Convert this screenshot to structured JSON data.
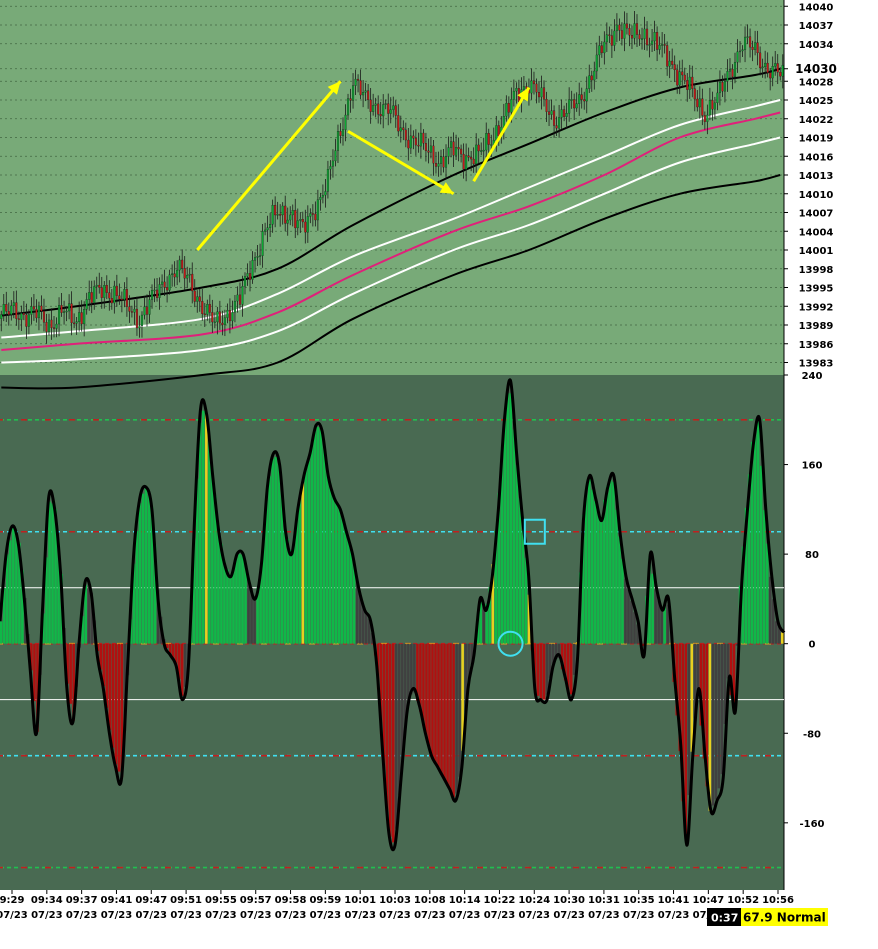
{
  "chart_data": [
    {
      "type": "candlestick",
      "panel": "price",
      "y_ticks": [
        "14040",
        "14037",
        "14034",
        "14030",
        "14028",
        "14025",
        "14022",
        "14019",
        "14016",
        "14013",
        "14010",
        "14007",
        "14004",
        "14001",
        "13998",
        "13995",
        "13992",
        "13989",
        "13986",
        "13983"
      ],
      "highlight_tick": "14030",
      "ylim": [
        13981,
        14041
      ],
      "grid": "dotted horizontal",
      "colors": {
        "background": "#78aa78",
        "up_candle": "#0aa832",
        "down_candle": "#c01818",
        "wick": "#1a1a1a",
        "ema_black": "#000000",
        "band_white": "#ffffff",
        "ema_magenta": "#e0207a",
        "arrows": "#ffff00"
      },
      "price_anchors": [
        [
          0,
          13990
        ],
        [
          5,
          13992
        ],
        [
          10,
          13990
        ],
        [
          15,
          13991
        ],
        [
          20,
          13989
        ],
        [
          25,
          13991
        ],
        [
          30,
          13990
        ],
        [
          35,
          13993
        ],
        [
          40,
          13995
        ],
        [
          45,
          13994
        ],
        [
          50,
          13992
        ],
        [
          55,
          13990
        ],
        [
          60,
          13993
        ],
        [
          65,
          13996
        ],
        [
          70,
          13998
        ],
        [
          75,
          13996
        ],
        [
          80,
          13992
        ],
        [
          85,
          13989
        ],
        [
          90,
          13991
        ],
        [
          95,
          13993
        ],
        [
          100,
          13999
        ],
        [
          105,
          14004
        ],
        [
          110,
          14007
        ],
        [
          115,
          14007
        ],
        [
          120,
          14004
        ],
        [
          125,
          14008
        ],
        [
          130,
          14012
        ],
        [
          135,
          14020
        ],
        [
          140,
          14028
        ],
        [
          145,
          14025
        ],
        [
          150,
          14024
        ],
        [
          155,
          14023
        ],
        [
          160,
          14020
        ],
        [
          165,
          14018
        ],
        [
          170,
          14017
        ],
        [
          175,
          14015
        ],
        [
          180,
          14017
        ],
        [
          185,
          14016
        ],
        [
          190,
          14016
        ],
        [
          195,
          14019
        ],
        [
          200,
          14022
        ],
        [
          205,
          14026
        ],
        [
          210,
          14028
        ],
        [
          215,
          14025
        ],
        [
          220,
          14022
        ],
        [
          225,
          14023
        ],
        [
          230,
          14025
        ],
        [
          235,
          14029
        ],
        [
          240,
          14034
        ],
        [
          245,
          14037
        ],
        [
          250,
          14035
        ],
        [
          255,
          14036
        ],
        [
          260,
          14034
        ],
        [
          265,
          14032
        ],
        [
          270,
          14029
        ],
        [
          275,
          14026
        ],
        [
          280,
          14023
        ],
        [
          285,
          14025
        ],
        [
          290,
          14030
        ],
        [
          295,
          14034
        ],
        [
          300,
          14033
        ],
        [
          305,
          14030
        ],
        [
          310,
          14029
        ]
      ],
      "moving_averages": [
        {
          "color": "#000000",
          "values": [
            13990.5,
            13992,
            13995,
            13998,
            14005,
            14013,
            14018,
            14023,
            14027,
            14029,
            14030
          ]
        },
        {
          "color": "#ffffff",
          "values": [
            13987,
            13988,
            13990,
            13994,
            14000,
            14006,
            14011,
            14016,
            14021,
            14024,
            14025
          ]
        },
        {
          "color": "#e0207a",
          "values": [
            13985,
            13986,
            13987.5,
            13991,
            13997,
            14004,
            14008,
            14013,
            14019,
            14022,
            14023
          ]
        },
        {
          "color": "#ffffff",
          "values": [
            13983,
            13983.5,
            13985,
            13988,
            13994,
            14001,
            14005,
            14010,
            14015,
            14018,
            14019
          ]
        },
        {
          "color": "#000000",
          "values": [
            13979,
            13979,
            13981,
            13983,
            13990,
            13997,
            14001,
            14006,
            14010,
            14012,
            14013
          ]
        }
      ],
      "ma_positions": [
        0,
        30,
        80,
        110,
        140,
        180,
        210,
        240,
        270,
        300,
        310
      ],
      "arrows": [
        {
          "from": [
            78,
            14001
          ],
          "to": [
            135,
            14028
          ]
        },
        {
          "from": [
            138,
            14020
          ],
          "to": [
            180,
            14010
          ]
        },
        {
          "from": [
            188,
            14012
          ],
          "to": [
            210,
            14027
          ]
        }
      ]
    },
    {
      "type": "area",
      "panel": "oscillator",
      "y_ticks": [
        "240",
        "160",
        "80",
        "0",
        "-80",
        "-160"
      ],
      "ylim": [
        -220,
        240
      ],
      "reference_lines": [
        {
          "value": 200,
          "style": "dashed",
          "color": "#20c050"
        },
        {
          "value": 100,
          "style": "dashed",
          "color": "#40e0f0"
        },
        {
          "value": 50,
          "style": "solid",
          "color": "#ffffff"
        },
        {
          "value": 0,
          "style": "dashed",
          "color": "#c02020"
        },
        {
          "value": -50,
          "style": "solid",
          "color": "#ffffff"
        },
        {
          "value": -100,
          "style": "dashed",
          "color": "#40e0f0"
        },
        {
          "value": -200,
          "style": "dashed",
          "color": "#20c050"
        }
      ],
      "colors": {
        "background": "#496a52",
        "positive": "#10b848",
        "negative": "#b01010",
        "neutral": "#404040",
        "yellow_bar": "#e8d020",
        "line": "#000000",
        "markers": "#40e0f0"
      },
      "series": [
        {
          "values": [
            20,
            80,
            105,
            90,
            40,
            -25,
            -80,
            30,
            130,
            120,
            60,
            -40,
            -70,
            0,
            55,
            45,
            -10,
            -40,
            -80,
            -110,
            -120,
            -20,
            80,
            130,
            140,
            120,
            40,
            0,
            -10,
            -20,
            -50,
            -20,
            110,
            210,
            205,
            150,
            100,
            70,
            60,
            80,
            80,
            55,
            40,
            70,
            140,
            170,
            160,
            100,
            80,
            120,
            150,
            170,
            195,
            190,
            150,
            130,
            120,
            100,
            80,
            50,
            30,
            20,
            -20,
            -100,
            -170,
            -180,
            -120,
            -60,
            -40,
            -55,
            -80,
            -100,
            -110,
            -120,
            -130,
            -140,
            -110,
            -40,
            -10,
            40,
            30,
            60,
            120,
            200,
            235,
            170,
            110,
            60,
            -40,
            -50,
            -50,
            -20,
            -10,
            -30,
            -50,
            -15,
            110,
            150,
            130,
            110,
            140,
            150,
            100,
            60,
            40,
            20,
            -10,
            80,
            50,
            30,
            40,
            -30,
            -90,
            -180,
            -100,
            -40,
            -100,
            -150,
            -140,
            -120,
            -30,
            -60,
            50,
            120,
            180,
            200,
            120,
            60,
            20,
            10
          ]
        }
      ],
      "yellow_bar_indices": [
        34,
        50,
        76,
        81,
        87,
        95,
        114,
        117,
        129
      ],
      "markers": [
        {
          "shape": "circle",
          "index": 84,
          "value": 0
        },
        {
          "shape": "square",
          "index": 88,
          "value": 100
        }
      ]
    }
  ],
  "x_axis": {
    "time_labels": [
      "9:29",
      "09:34",
      "09:37",
      "09:41",
      "09:47",
      "09:51",
      "09:55",
      "09:57",
      "09:58",
      "09:59",
      "10:01",
      "10:03",
      "10:08",
      "10:14",
      "10:22",
      "10:24",
      "10:30",
      "10:31",
      "10:35",
      "10:41",
      "10:47",
      "10:52",
      "10:56"
    ],
    "date_labels": [
      "07/23",
      "07/23",
      "07/23",
      "07/23",
      "07/23",
      "07/23",
      "07/23",
      "07/23",
      "07/23",
      "07/23",
      "07/23",
      "07/23",
      "07/23",
      "07/23",
      "07/23",
      "07/23",
      "07/23",
      "07/23",
      "07/23",
      "07/23",
      "07/23",
      "07/23",
      "07/23"
    ]
  },
  "status": {
    "timer": "0:37",
    "badge": "67.9 Normal",
    "badge_color": "#ffff00"
  }
}
